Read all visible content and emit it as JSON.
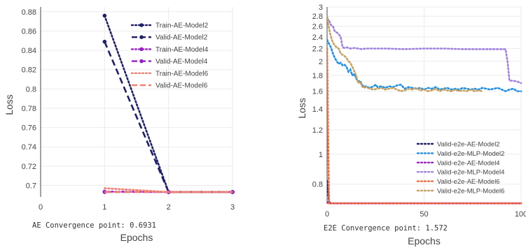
{
  "chart_data": [
    {
      "type": "line",
      "xlabel": "Epochs",
      "ylabel": "Loss",
      "xlim": [
        0,
        3
      ],
      "ylim": [
        0.688,
        0.885
      ],
      "x_ticks": [
        0,
        1,
        2,
        3
      ],
      "y_ticks": [
        0.7,
        0.72,
        0.74,
        0.76,
        0.78,
        0.8,
        0.82,
        0.84,
        0.86,
        0.88
      ],
      "annotation": "AE Convergence point: 0.6931",
      "legend_placement": "top-right",
      "series": [
        {
          "name": "Train-AE-Model2",
          "color": "#1f1f6b",
          "dash": "dot",
          "marker": true,
          "x": [
            1,
            2,
            3
          ],
          "y": [
            0.876,
            0.6931,
            0.6931
          ]
        },
        {
          "name": "Valid-AE-Model2",
          "color": "#1f1f6b",
          "dash": "dash",
          "marker": true,
          "x": [
            1,
            2,
            3
          ],
          "y": [
            0.849,
            0.6931,
            0.6931
          ]
        },
        {
          "name": "Train-AE-Model4",
          "color": "#9b1fc7",
          "dash": "dot",
          "marker": true,
          "x": [
            1,
            2,
            3
          ],
          "y": [
            0.6935,
            0.6931,
            0.6931
          ]
        },
        {
          "name": "Valid-AE-Model4",
          "color": "#9b1fc7",
          "dash": "dash",
          "marker": true,
          "x": [
            1,
            2,
            3
          ],
          "y": [
            0.6931,
            0.6931,
            0.6931
          ]
        },
        {
          "name": "Train-AE-Model6",
          "color": "#f08070",
          "dash": "dot",
          "marker": false,
          "x": [
            1,
            2,
            3
          ],
          "y": [
            0.697,
            0.6931,
            0.6931
          ]
        },
        {
          "name": "Valid-AE-Model6",
          "color": "#f08070",
          "dash": "dash",
          "marker": false,
          "x": [
            1,
            2,
            3
          ],
          "y": [
            0.6931,
            0.6931,
            0.6931
          ]
        }
      ]
    },
    {
      "type": "line",
      "xlabel": "Epochs",
      "ylabel": "Loss",
      "y_scale": "log",
      "xlim": [
        0,
        100
      ],
      "ylim": [
        0.69,
        3.0
      ],
      "x_ticks": [
        0,
        50,
        100
      ],
      "y_ticks": [
        0.8,
        1,
        1.2,
        1.4,
        1.6,
        1.8,
        2,
        2.2,
        2.4,
        2.6,
        2.8,
        3
      ],
      "annotation": "E2E Convergence point: 1.572",
      "legend_placement": "bottom-right",
      "series": [
        {
          "name": "Valid-e2e-AE-Model2",
          "color": "#1f1f6b",
          "dash": "dot",
          "marker": false,
          "x": [
            0,
            1,
            2,
            3,
            100
          ],
          "y": [
            0.82,
            0.7,
            0.6931,
            0.6931,
            0.6931
          ]
        },
        {
          "name": "Valid-e2e-MLP-Model2",
          "color": "#1e90e8",
          "dash": "dot",
          "marker": false,
          "x": [
            0,
            1,
            2,
            3,
            4,
            5,
            6,
            7,
            8,
            9,
            10,
            11,
            12,
            13,
            14,
            15,
            16,
            17,
            18,
            19,
            20,
            22,
            24,
            25,
            26,
            28,
            30,
            32,
            34,
            36,
            38,
            40,
            42,
            44,
            46,
            48,
            50,
            52,
            54,
            56,
            58,
            60,
            62,
            64,
            66,
            68,
            70,
            72,
            74,
            76,
            78,
            80,
            82,
            84,
            86,
            88,
            90,
            92,
            94,
            96,
            98,
            100
          ],
          "y": [
            2.35,
            2.28,
            2.22,
            2.12,
            2.05,
            2.0,
            1.96,
            1.98,
            1.94,
            1.95,
            1.92,
            1.85,
            1.88,
            1.8,
            1.82,
            1.76,
            1.72,
            1.73,
            1.68,
            1.65,
            1.66,
            1.64,
            1.66,
            1.68,
            1.65,
            1.66,
            1.64,
            1.66,
            1.65,
            1.67,
            1.68,
            1.63,
            1.65,
            1.64,
            1.63,
            1.64,
            1.62,
            1.64,
            1.63,
            1.65,
            1.62,
            1.63,
            1.64,
            1.62,
            1.63,
            1.62,
            1.64,
            1.63,
            1.62,
            1.63,
            1.62,
            1.64,
            1.63,
            1.62,
            1.63,
            1.64,
            1.62,
            1.6,
            1.62,
            1.63,
            1.6,
            1.6
          ]
        },
        {
          "name": "Valid-e2e-AE-Model4",
          "color": "#9b1fc7",
          "dash": "dot",
          "marker": false,
          "x": [
            0,
            1,
            2,
            100
          ],
          "y": [
            0.7,
            0.6931,
            0.6931,
            0.6931
          ]
        },
        {
          "name": "Valid-e2e-MLP-Model4",
          "color": "#a082e0",
          "dash": "dot",
          "marker": false,
          "x": [
            0,
            1,
            2,
            3,
            4,
            5,
            6,
            7,
            8,
            9,
            10,
            12,
            14,
            16,
            18,
            20,
            30,
            40,
            50,
            60,
            70,
            80,
            88,
            92,
            93,
            94,
            96,
            98,
            100
          ],
          "y": [
            2.75,
            2.72,
            2.62,
            2.6,
            2.5,
            2.48,
            2.45,
            2.4,
            2.22,
            2.21,
            2.22,
            2.2,
            2.21,
            2.2,
            2.19,
            2.2,
            2.2,
            2.19,
            2.2,
            2.2,
            2.19,
            2.19,
            2.19,
            2.19,
            2.0,
            1.73,
            1.73,
            1.72,
            1.7
          ]
        },
        {
          "name": "Valid-e2e-AE-Model6",
          "color": "#f26a3a",
          "dash": "dot",
          "marker": false,
          "x": [
            0,
            0.5,
            1,
            2,
            100
          ],
          "y": [
            2.2,
            1.2,
            0.6931,
            0.6931,
            0.6931
          ]
        },
        {
          "name": "Valid-e2e-MLP-Model6",
          "color": "#c8a060",
          "dash": "dot",
          "marker": false,
          "x": [
            0,
            1,
            2,
            3,
            4,
            5,
            6,
            7,
            8,
            9,
            10,
            11,
            12,
            13,
            14,
            15,
            16,
            17,
            18,
            19,
            20,
            22,
            24,
            26,
            28,
            30,
            32,
            34,
            36,
            38,
            40,
            42,
            44,
            46,
            48,
            50,
            52,
            54,
            56,
            58,
            60,
            62,
            64,
            66,
            68,
            70,
            72,
            74,
            76,
            78,
            80
          ],
          "y": [
            2.8,
            2.55,
            2.4,
            2.3,
            2.25,
            2.22,
            2.2,
            2.12,
            2.1,
            2.08,
            2.05,
            2.0,
            1.98,
            1.92,
            1.86,
            1.8,
            1.7,
            1.72,
            1.66,
            1.64,
            1.65,
            1.63,
            1.62,
            1.63,
            1.64,
            1.62,
            1.63,
            1.64,
            1.62,
            1.6,
            1.61,
            1.63,
            1.62,
            1.64,
            1.61,
            1.62,
            1.6,
            1.61,
            1.63,
            1.6,
            1.62,
            1.61,
            1.6,
            1.62,
            1.6,
            1.61,
            1.6,
            1.62,
            1.6,
            1.61,
            1.6
          ]
        }
      ]
    }
  ]
}
